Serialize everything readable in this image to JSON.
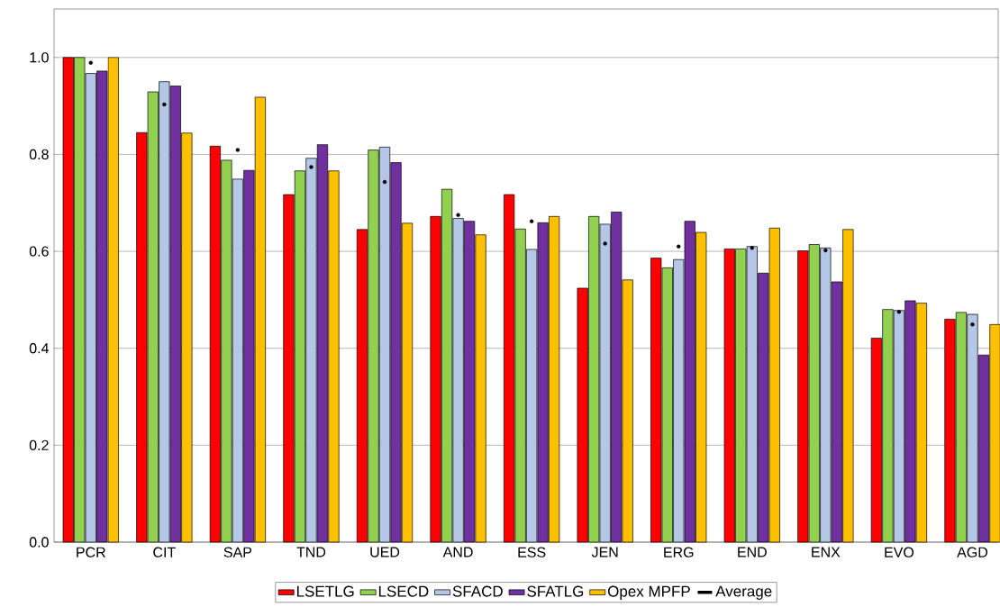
{
  "chart_data": {
    "type": "bar",
    "categories": [
      "PCR",
      "CIT",
      "SAP",
      "TND",
      "UED",
      "AND",
      "ESS",
      "JEN",
      "ERG",
      "END",
      "ENX",
      "EVO",
      "AGD"
    ],
    "series": [
      {
        "name": "LSETLG",
        "color": "#ff0000",
        "values": [
          1.0,
          0.845,
          0.817,
          0.717,
          0.645,
          0.672,
          0.717,
          0.524,
          0.586,
          0.605,
          0.601,
          0.421,
          0.46
        ]
      },
      {
        "name": "LSECD",
        "color": "#92d050",
        "values": [
          1.0,
          0.929,
          0.788,
          0.766,
          0.809,
          0.728,
          0.646,
          0.672,
          0.566,
          0.605,
          0.614,
          0.48,
          0.474
        ]
      },
      {
        "name": "SFACD",
        "color": "#b4c7e7",
        "values": [
          0.967,
          0.95,
          0.749,
          0.792,
          0.815,
          0.668,
          0.604,
          0.656,
          0.583,
          0.61,
          0.607,
          0.478,
          0.47
        ]
      },
      {
        "name": "SFATLG",
        "color": "#7030a0",
        "values": [
          0.972,
          0.941,
          0.767,
          0.82,
          0.783,
          0.662,
          0.659,
          0.681,
          0.662,
          0.555,
          0.537,
          0.498,
          0.386
        ]
      },
      {
        "name": "Opex MPFP",
        "color": "#ffc000",
        "values": [
          1.0,
          0.844,
          0.918,
          0.766,
          0.658,
          0.634,
          0.672,
          0.541,
          0.639,
          0.648,
          0.645,
          0.493,
          0.449
        ]
      },
      {
        "name": "Average",
        "type": "scatter",
        "color": "#000000",
        "values": [
          0.989,
          0.903,
          0.809,
          0.774,
          0.743,
          0.675,
          0.662,
          0.616,
          0.61,
          0.607,
          0.602,
          0.475,
          0.449
        ]
      }
    ],
    "ylim": [
      0,
      1.1
    ],
    "yticks": [
      {
        "value": 0,
        "label": "0.0"
      },
      {
        "value": 0.2,
        "label": "0.2"
      },
      {
        "value": 0.4,
        "label": "0.4"
      },
      {
        "value": 0.6,
        "label": "0.6"
      },
      {
        "value": 0.8,
        "label": "0.8"
      },
      {
        "value": 1.0,
        "label": "1.0"
      }
    ],
    "grid": "y",
    "legend": "bottom"
  }
}
